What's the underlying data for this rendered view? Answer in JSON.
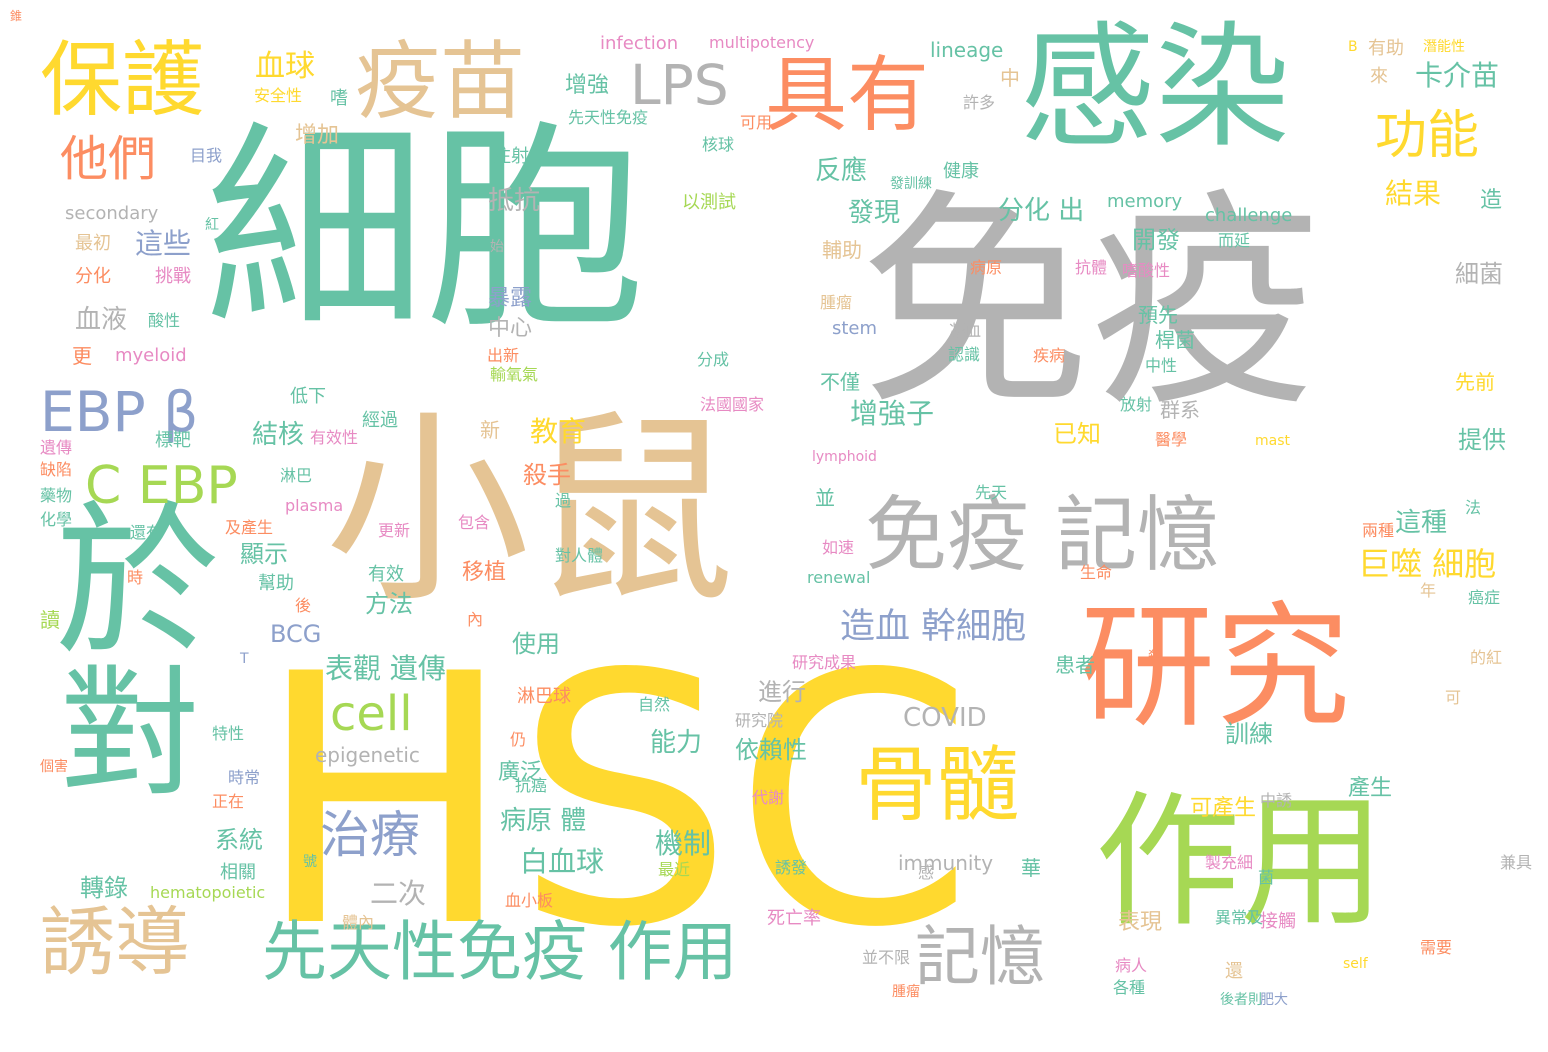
{
  "palette": {
    "teal": "#66c2a5",
    "gray": "#b3b3b3",
    "yellow": "#ffd92f",
    "tan": "#e5c494",
    "orange": "#fc8d62",
    "green": "#a6d854",
    "blue": "#8da0cb",
    "pink": "#e78ac3"
  },
  "words": [
    {
      "text": "細胞",
      "color": "teal"
    },
    {
      "text": "免疫",
      "color": "gray"
    },
    {
      "text": "HSC",
      "color": "yellow"
    },
    {
      "text": "小鼠",
      "color": "tan"
    },
    {
      "text": "感染",
      "color": "teal"
    },
    {
      "text": "研究",
      "color": "orange"
    },
    {
      "text": "作用",
      "color": "green"
    },
    {
      "text": "於",
      "color": "teal"
    },
    {
      "text": "對",
      "color": "teal"
    },
    {
      "text": "免疫 記憶",
      "color": "gray"
    },
    {
      "text": "疫苗",
      "color": "tan"
    },
    {
      "text": "保護",
      "color": "yellow"
    },
    {
      "text": "具有",
      "color": "orange"
    },
    {
      "text": "骨髓",
      "color": "yellow"
    },
    {
      "text": "先天性免疫 作用",
      "color": "teal"
    },
    {
      "text": "誘導",
      "color": "tan"
    },
    {
      "text": "C EBP",
      "color": "green"
    },
    {
      "text": "EBP β",
      "color": "blue"
    },
    {
      "text": "他們",
      "color": "orange"
    },
    {
      "text": "LPS",
      "color": "gray"
    },
    {
      "text": "功能",
      "color": "yellow"
    },
    {
      "text": "治療",
      "color": "blue"
    },
    {
      "text": "記憶",
      "color": "gray"
    },
    {
      "text": "cell",
      "color": "green"
    },
    {
      "text": "造血 幹細胞",
      "color": "blue"
    },
    {
      "text": "巨噬 細胞",
      "color": "yellow"
    },
    {
      "text": "血球",
      "color": "yellow"
    },
    {
      "text": "卡介苗",
      "color": "teal"
    },
    {
      "text": "COVID",
      "color": "gray"
    },
    {
      "text": "表觀 遺傳",
      "color": "teal"
    },
    {
      "text": "白血球",
      "color": "teal"
    },
    {
      "text": "機制",
      "color": "teal"
    },
    {
      "text": "二次",
      "color": "gray"
    },
    {
      "text": "病原 體",
      "color": "teal"
    },
    {
      "text": "能力",
      "color": "teal"
    },
    {
      "text": "教育",
      "color": "yellow"
    },
    {
      "text": "增強子",
      "color": "teal"
    },
    {
      "text": "發現",
      "color": "teal"
    },
    {
      "text": "反應",
      "color": "teal"
    },
    {
      "text": "結果",
      "color": "yellow"
    },
    {
      "text": "這種",
      "color": "teal"
    },
    {
      "text": "這些",
      "color": "blue"
    },
    {
      "text": "抵抗",
      "color": "gray"
    },
    {
      "text": "分化 出",
      "color": "teal"
    },
    {
      "text": "開發",
      "color": "teal"
    },
    {
      "text": "血液",
      "color": "gray"
    },
    {
      "text": "結核",
      "color": "teal"
    },
    {
      "text": "顯示",
      "color": "teal"
    },
    {
      "text": "轉錄",
      "color": "teal"
    },
    {
      "text": "方法",
      "color": "teal"
    },
    {
      "text": "系統",
      "color": "teal"
    },
    {
      "text": "BCG",
      "color": "blue"
    },
    {
      "text": "使用",
      "color": "teal"
    },
    {
      "text": "移植",
      "color": "orange"
    },
    {
      "text": "殺手",
      "color": "orange"
    },
    {
      "text": "進行",
      "color": "gray"
    },
    {
      "text": "訓練",
      "color": "teal"
    },
    {
      "text": "依賴性",
      "color": "teal"
    },
    {
      "text": "廣泛",
      "color": "teal"
    },
    {
      "text": "提供",
      "color": "teal"
    },
    {
      "text": "已知",
      "color": "yellow"
    },
    {
      "text": "細菌",
      "color": "gray"
    },
    {
      "text": "產生",
      "color": "teal"
    },
    {
      "text": "可產生",
      "color": "yellow"
    },
    {
      "text": "表現",
      "color": "tan"
    },
    {
      "text": "暴露",
      "color": "blue"
    },
    {
      "text": "中心",
      "color": "gray"
    },
    {
      "text": "增強",
      "color": "teal"
    },
    {
      "text": "增加",
      "color": "tan"
    },
    {
      "text": "安全性",
      "color": "yellow"
    },
    {
      "text": "注射",
      "color": "teal"
    },
    {
      "text": "以測試",
      "color": "green"
    },
    {
      "text": "輔助",
      "color": "tan"
    },
    {
      "text": "預先",
      "color": "teal"
    },
    {
      "text": "桿菌",
      "color": "teal"
    },
    {
      "text": "群系",
      "color": "gray"
    },
    {
      "text": "先前",
      "color": "yellow"
    },
    {
      "text": "不僅",
      "color": "teal"
    },
    {
      "text": "infection",
      "color": "pink"
    },
    {
      "text": "multipotency",
      "color": "pink"
    },
    {
      "text": "lineage",
      "color": "teal"
    },
    {
      "text": "secondary",
      "color": "gray"
    },
    {
      "text": "memory",
      "color": "teal"
    },
    {
      "text": "challenge",
      "color": "teal"
    },
    {
      "text": "myeloid",
      "color": "pink"
    },
    {
      "text": "stem",
      "color": "blue"
    },
    {
      "text": "epigenetic",
      "color": "gray"
    },
    {
      "text": "immunity",
      "color": "gray"
    },
    {
      "text": "hematopoietic",
      "color": "green"
    },
    {
      "text": "renewal",
      "color": "teal"
    },
    {
      "text": "plasma",
      "color": "pink"
    },
    {
      "text": "lymphoid",
      "color": "pink"
    },
    {
      "text": "mast",
      "color": "yellow"
    },
    {
      "text": "self",
      "color": "yellow"
    },
    {
      "text": "有助",
      "color": "tan"
    },
    {
      "text": "來",
      "color": "tan"
    },
    {
      "text": "B",
      "color": "yellow"
    },
    {
      "text": "潛能性",
      "color": "yellow"
    },
    {
      "text": "中",
      "color": "tan"
    },
    {
      "text": "許多",
      "color": "gray"
    },
    {
      "text": "健康",
      "color": "teal"
    },
    {
      "text": "病原",
      "color": "orange"
    },
    {
      "text": "抗體",
      "color": "pink"
    },
    {
      "text": "嗜酸性",
      "color": "pink"
    },
    {
      "text": "而延",
      "color": "teal"
    },
    {
      "text": "造",
      "color": "teal"
    },
    {
      "text": "先天性免疫",
      "color": "teal"
    },
    {
      "text": "核球",
      "color": "teal"
    },
    {
      "text": "可用",
      "color": "orange"
    },
    {
      "text": "嗜",
      "color": "teal"
    },
    {
      "text": "目我",
      "color": "blue"
    },
    {
      "text": "最初",
      "color": "tan"
    },
    {
      "text": "分化",
      "color": "orange"
    },
    {
      "text": "挑戰",
      "color": "pink"
    },
    {
      "text": "更",
      "color": "orange"
    },
    {
      "text": "低下",
      "color": "teal"
    },
    {
      "text": "標靶",
      "color": "teal"
    },
    {
      "text": "經過",
      "color": "teal"
    },
    {
      "text": "有效性",
      "color": "pink"
    },
    {
      "text": "新",
      "color": "tan"
    },
    {
      "text": "並",
      "color": "teal"
    },
    {
      "text": "過",
      "color": "teal"
    },
    {
      "text": "包含",
      "color": "pink"
    },
    {
      "text": "更新",
      "color": "pink"
    },
    {
      "text": "還有",
      "color": "teal"
    },
    {
      "text": "及產生",
      "color": "orange"
    },
    {
      "text": "幫助",
      "color": "teal"
    },
    {
      "text": "有效",
      "color": "teal"
    },
    {
      "text": "後",
      "color": "orange"
    },
    {
      "text": "患者",
      "color": "teal"
    },
    {
      "text": "內",
      "color": "orange"
    },
    {
      "text": "對人體",
      "color": "teal"
    },
    {
      "text": "如速",
      "color": "pink"
    },
    {
      "text": "先天",
      "color": "teal"
    },
    {
      "text": "生命",
      "color": "orange"
    },
    {
      "text": "自然",
      "color": "teal"
    },
    {
      "text": "研究院",
      "color": "gray"
    },
    {
      "text": "研究成果",
      "color": "pink"
    },
    {
      "text": "淋巴球",
      "color": "orange"
    },
    {
      "text": "仍",
      "color": "orange"
    },
    {
      "text": "抗癌",
      "color": "teal"
    },
    {
      "text": "誘發",
      "color": "teal"
    },
    {
      "text": "代謝",
      "color": "pink"
    },
    {
      "text": "最近",
      "color": "green"
    },
    {
      "text": "血小板",
      "color": "orange"
    },
    {
      "text": "體內",
      "color": "tan"
    },
    {
      "text": "死亡率",
      "color": "pink"
    },
    {
      "text": "並不限",
      "color": "gray"
    },
    {
      "text": "相關",
      "color": "teal"
    },
    {
      "text": "正在",
      "color": "orange"
    },
    {
      "text": "時常",
      "color": "blue"
    },
    {
      "text": "特性",
      "color": "teal"
    },
    {
      "text": "個害",
      "color": "orange"
    },
    {
      "text": "讀",
      "color": "green"
    },
    {
      "text": "時",
      "color": "orange"
    },
    {
      "text": "化學",
      "color": "teal"
    },
    {
      "text": "藥物",
      "color": "teal"
    },
    {
      "text": "缺陷",
      "color": "orange"
    },
    {
      "text": "遺傳",
      "color": "pink"
    },
    {
      "text": "酸性",
      "color": "teal"
    },
    {
      "text": "輸氧氣",
      "color": "green"
    },
    {
      "text": "出新",
      "color": "orange"
    },
    {
      "text": "分成",
      "color": "teal"
    },
    {
      "text": "法國國家",
      "color": "pink"
    },
    {
      "text": "腫瘤",
      "color": "tan"
    },
    {
      "text": "凝血",
      "color": "gray"
    },
    {
      "text": "認識",
      "color": "teal"
    },
    {
      "text": "疾病",
      "color": "orange"
    },
    {
      "text": "中性",
      "color": "teal"
    },
    {
      "text": "放射",
      "color": "teal"
    },
    {
      "text": "醫學",
      "color": "orange"
    },
    {
      "text": "淋巴",
      "color": "teal"
    },
    {
      "text": "兩種",
      "color": "orange"
    },
    {
      "text": "法",
      "color": "teal"
    },
    {
      "text": "癌症",
      "color": "teal"
    },
    {
      "text": "年",
      "color": "tan"
    },
    {
      "text": "的紅",
      "color": "tan"
    },
    {
      "text": "可",
      "color": "tan"
    },
    {
      "text": "中誘",
      "color": "gray"
    },
    {
      "text": "製充細",
      "color": "pink"
    },
    {
      "text": "華",
      "color": "teal"
    },
    {
      "text": "菌",
      "color": "teal"
    },
    {
      "text": "兼具",
      "color": "gray"
    },
    {
      "text": "感",
      "color": "gray"
    },
    {
      "text": "異常及",
      "color": "teal"
    },
    {
      "text": "接觸",
      "color": "pink"
    },
    {
      "text": "還",
      "color": "tan"
    },
    {
      "text": "需要",
      "color": "orange"
    },
    {
      "text": "病人",
      "color": "pink"
    },
    {
      "text": "各種",
      "color": "teal"
    },
    {
      "text": "後者則",
      "color": "teal"
    },
    {
      "text": "肥大",
      "color": "blue"
    },
    {
      "text": "腫瘤",
      "color": "orange"
    },
    {
      "text": "T",
      "color": "blue"
    },
    {
      "text": "號",
      "color": "teal"
    },
    {
      "text": "紅",
      "color": "teal"
    },
    {
      "text": "始",
      "color": "gray"
    },
    {
      "text": "發訓練",
      "color": "teal"
    },
    {
      "text": "殺",
      "color": "orange"
    },
    {
      "text": "錐",
      "color": "orange"
    }
  ]
}
